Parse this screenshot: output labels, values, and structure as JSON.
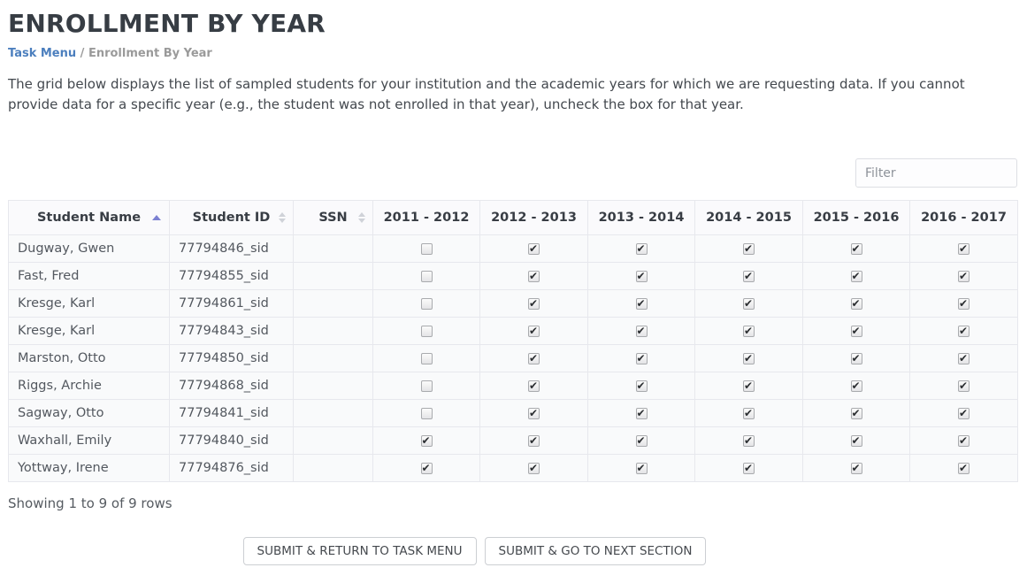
{
  "page": {
    "title": "ENROLLMENT BY YEAR",
    "breadcrumb": {
      "link": "Task Menu",
      "separator": "/",
      "current": "Enrollment By Year"
    },
    "description": "The grid below displays the list of sampled students for your institution and the academic years for which we are requesting data. If you cannot provide data for a specific year (e.g., the student was not enrolled in that year), uncheck the box for that year."
  },
  "toolbar": {
    "filter_placeholder": "Filter"
  },
  "table": {
    "columns": [
      {
        "label": "Student Name",
        "sort": "asc"
      },
      {
        "label": "Student ID",
        "sort": "both"
      },
      {
        "label": "SSN",
        "sort": "both"
      },
      {
        "label": "2011 - 2012",
        "sort": "none"
      },
      {
        "label": "2012 - 2013",
        "sort": "none"
      },
      {
        "label": "2013 - 2014",
        "sort": "none"
      },
      {
        "label": "2014 - 2015",
        "sort": "none"
      },
      {
        "label": "2015 - 2016",
        "sort": "none"
      },
      {
        "label": "2016 - 2017",
        "sort": "none"
      }
    ],
    "rows": [
      {
        "name": "Dugway, Gwen",
        "id": "77794846_sid",
        "ssn": "",
        "years": [
          false,
          true,
          true,
          true,
          true,
          true
        ]
      },
      {
        "name": "Fast, Fred",
        "id": "77794855_sid",
        "ssn": "",
        "years": [
          false,
          true,
          true,
          true,
          true,
          true
        ]
      },
      {
        "name": "Kresge, Karl",
        "id": "77794861_sid",
        "ssn": "",
        "years": [
          false,
          true,
          true,
          true,
          true,
          true
        ]
      },
      {
        "name": "Kresge, Karl",
        "id": "77794843_sid",
        "ssn": "",
        "years": [
          false,
          true,
          true,
          true,
          true,
          true
        ]
      },
      {
        "name": "Marston, Otto",
        "id": "77794850_sid",
        "ssn": "",
        "years": [
          false,
          true,
          true,
          true,
          true,
          true
        ]
      },
      {
        "name": "Riggs, Archie",
        "id": "77794868_sid",
        "ssn": "",
        "years": [
          false,
          true,
          true,
          true,
          true,
          true
        ]
      },
      {
        "name": "Sagway, Otto",
        "id": "77794841_sid",
        "ssn": "",
        "years": [
          false,
          true,
          true,
          true,
          true,
          true
        ]
      },
      {
        "name": "Waxhall, Emily",
        "id": "77794840_sid",
        "ssn": "",
        "years": [
          true,
          true,
          true,
          true,
          true,
          true
        ]
      },
      {
        "name": "Yottway, Irene",
        "id": "77794876_sid",
        "ssn": "",
        "years": [
          true,
          true,
          true,
          true,
          true,
          true
        ]
      }
    ]
  },
  "footer": {
    "status": "Showing 1 to 9 of 9 rows"
  },
  "buttons": [
    {
      "label": "SUBMIT & RETURN TO TASK MENU"
    },
    {
      "label": "SUBMIT & GO TO NEXT SECTION"
    }
  ],
  "colors": {
    "link_blue": "#4c7fbe",
    "sort_active_arrow": "#7b80d2",
    "sort_inactive_arrow": "#cfd2d8",
    "title_text": "#373d44",
    "row_background": "#f9fafb",
    "table_border": "#e7e8ed"
  }
}
